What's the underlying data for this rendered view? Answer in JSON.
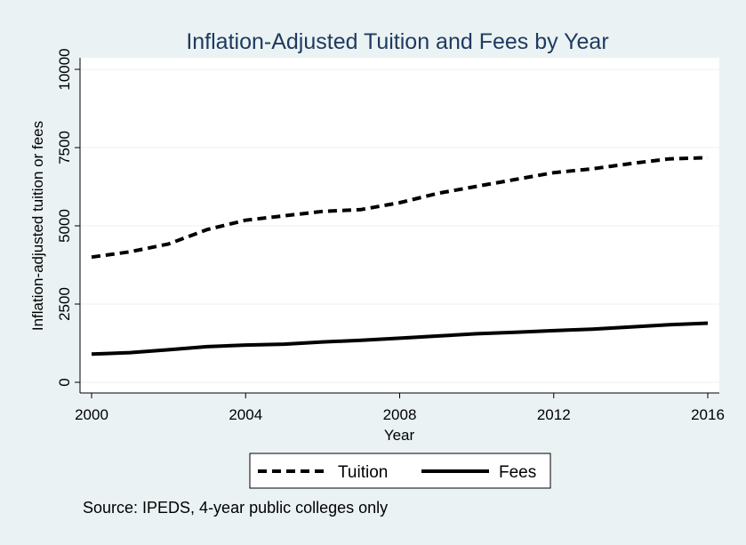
{
  "chart_data": {
    "type": "line",
    "title": "Inflation-Adjusted Tuition and Fees by Year",
    "xlabel": "Year",
    "ylabel": "Inflation-adjusted tuition or fees",
    "note": "Source: IPEDS, 4-year public colleges only",
    "xlim": [
      2000,
      2016
    ],
    "ylim": [
      0,
      10000
    ],
    "x_ticks": [
      2000,
      2004,
      2008,
      2012,
      2016
    ],
    "y_ticks": [
      0,
      2500,
      5000,
      7500,
      10000
    ],
    "grid": true,
    "legend_position": "bottom",
    "x": [
      2000,
      2001,
      2002,
      2003,
      2004,
      2005,
      2006,
      2007,
      2008,
      2009,
      2010,
      2011,
      2012,
      2013,
      2014,
      2015,
      2016
    ],
    "series": [
      {
        "name": "Tuition",
        "style": "dashed",
        "color": "#000000",
        "values": [
          4000,
          4170,
          4420,
          4880,
          5180,
          5320,
          5460,
          5520,
          5740,
          6040,
          6260,
          6480,
          6700,
          6820,
          6990,
          7140,
          7180
        ]
      },
      {
        "name": "Fees",
        "style": "solid",
        "color": "#000000",
        "values": [
          900,
          950,
          1040,
          1140,
          1190,
          1220,
          1290,
          1340,
          1410,
          1480,
          1550,
          1600,
          1650,
          1700,
          1770,
          1840,
          1890
        ]
      }
    ]
  },
  "colors": {
    "background": "#eaf2f3",
    "plot_background": "#ffffff",
    "title": "#1e3a5f",
    "grid": "#eaf2f3"
  }
}
